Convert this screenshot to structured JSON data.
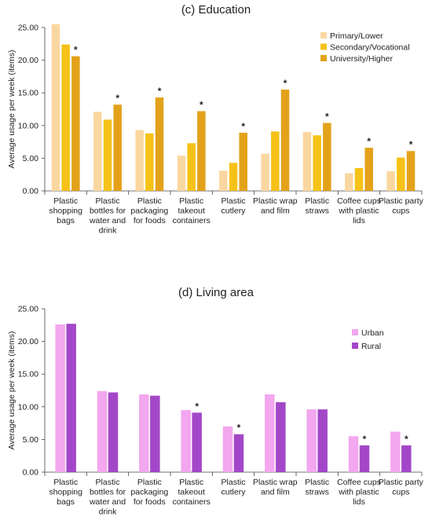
{
  "chart_data": [
    {
      "type": "bar",
      "title": "(c) Education",
      "ylabel": "Average usage per week (items)",
      "ylim": [
        0,
        25
      ],
      "yticks": [
        "0.00",
        "5.00",
        "10.00",
        "15.00",
        "20.00",
        "25.00"
      ],
      "grid": false,
      "legend_position": "top-right",
      "categories": [
        [
          "Plastic",
          "shopping",
          "bags"
        ],
        [
          "Plastic",
          "bottles for",
          "water and",
          "drink"
        ],
        [
          "Plastic",
          "packaging",
          "for foods"
        ],
        [
          "Plastic",
          "takeout",
          "containers"
        ],
        [
          "Plastic",
          "cutlery"
        ],
        [
          "Plastic wrap",
          "and film"
        ],
        [
          "Plastic",
          "straws"
        ],
        [
          "Coffee cups",
          "with plastic",
          "lids"
        ],
        [
          "Plastic party",
          "cups"
        ]
      ],
      "series": [
        {
          "name": "Primary/Lower",
          "color": "#FAD7A0",
          "values": [
            25.5,
            12.1,
            9.3,
            5.4,
            3.1,
            5.7,
            9.0,
            2.7,
            3.0
          ]
        },
        {
          "name": "Secondary/Vocational",
          "color": "#F6C218",
          "values": [
            22.4,
            10.9,
            8.8,
            7.3,
            4.3,
            9.1,
            8.5,
            3.5,
            5.1
          ]
        },
        {
          "name": "University/Higher",
          "color": "#E3A21A",
          "values": [
            20.6,
            13.2,
            14.3,
            12.2,
            8.9,
            15.5,
            10.4,
            6.6,
            6.1
          ]
        }
      ],
      "significance_marker": "*",
      "significant_categories": [
        0,
        1,
        2,
        3,
        4,
        5,
        6,
        7,
        8
      ]
    },
    {
      "type": "bar",
      "title": "(d) Living area",
      "ylabel": "Average usage per week (items)",
      "ylim": [
        0,
        25
      ],
      "yticks": [
        "0.00",
        "5.00",
        "10.00",
        "15.00",
        "20.00",
        "25.00"
      ],
      "grid": false,
      "legend_position": "top-right",
      "categories": [
        [
          "Plastic",
          "shopping",
          "bags"
        ],
        [
          "Plastic",
          "bottles for",
          "water and",
          "drink"
        ],
        [
          "Plastic",
          "packaging",
          "for foods"
        ],
        [
          "Plastic",
          "takeout",
          "containers"
        ],
        [
          "Plastic",
          "cutlery"
        ],
        [
          "Plastic wrap",
          "and film"
        ],
        [
          "Plastic",
          "straws"
        ],
        [
          "Coffee cups",
          "with plastic",
          "lids"
        ],
        [
          "Plastic party",
          "cups"
        ]
      ],
      "series": [
        {
          "name": "Urban",
          "color": "#F2A7EE",
          "values": [
            22.6,
            12.4,
            11.9,
            9.5,
            7.0,
            11.9,
            9.6,
            5.5,
            6.2
          ]
        },
        {
          "name": "Rural",
          "color": "#A347C8",
          "values": [
            22.7,
            12.2,
            11.7,
            9.1,
            5.8,
            10.7,
            9.6,
            4.1,
            4.1
          ]
        }
      ],
      "significance_marker": "*",
      "significant_categories": [
        3,
        4,
        7,
        8
      ]
    }
  ]
}
